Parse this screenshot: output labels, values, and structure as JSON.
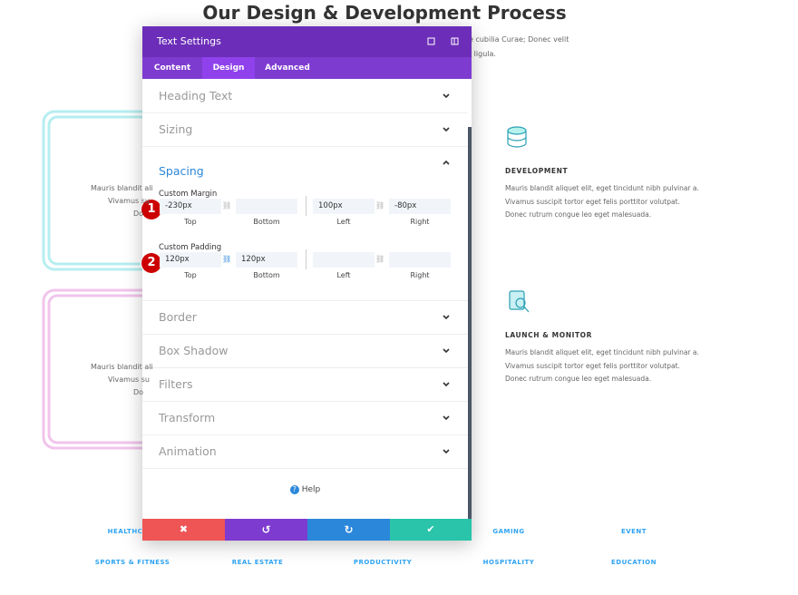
{
  "page": {
    "title": "Our Design & Development Process",
    "intro_lines": [
      "e cubilia Curae; Donec velit",
      "t ligula."
    ],
    "left_cards": [
      {
        "lines": [
          "Mauris blandit ali",
          "Vivamus su",
          "Do"
        ]
      },
      {
        "lines": [
          "Mauris blandit ali",
          "Vivamus su",
          "Do"
        ]
      }
    ],
    "features": [
      {
        "title": "DEVELOPMENT",
        "lines": [
          "Mauris blandit aliquet elit, eget tincidunt nibh pulvinar a.",
          "Vivamus suscipit tortor eget felis porttitor volutpat.",
          "Donec rutrum congue leo eget malesuada."
        ]
      },
      {
        "title": "LAUNCH & MONITOR",
        "lines": [
          "Mauris blandit aliquet elit, eget tincidunt nibh pulvinar a.",
          "Vivamus suscipit tortor eget felis porttitor volutpat.",
          "Donec rutrum congue leo eget malesuada."
        ]
      }
    ],
    "categories_row1": [
      "HEALTHC",
      "GAMING",
      "EVENT"
    ],
    "categories_row2": [
      "SPORTS & FITNESS",
      "REAL ESTATE",
      "PRODUCTIVITY",
      "HOSPITALITY",
      "EDUCATION"
    ]
  },
  "modal": {
    "title": "Text Settings",
    "tabs": [
      "Content",
      "Design",
      "Advanced"
    ],
    "active_tab": "Design",
    "sections_before": [
      "Heading Text",
      "Sizing"
    ],
    "open_section": "Spacing",
    "groups": [
      {
        "label": "Custom Margin",
        "badge": "1",
        "fields": [
          {
            "label": "Top",
            "value": "-230px"
          },
          {
            "label": "Bottom"
          },
          {
            "label": "Left",
            "value": "100px"
          },
          {
            "label": "Right",
            "value": "-80px"
          }
        ]
      },
      {
        "label": "Custom Padding",
        "badge": "2",
        "fields": [
          {
            "label": "Top",
            "value": "120px"
          },
          {
            "label": "Bottom",
            "value": "120px"
          },
          {
            "label": "Left"
          },
          {
            "label": "Right"
          }
        ]
      }
    ],
    "sections_after": [
      "Border",
      "Box Shadow",
      "Filters",
      "Transform",
      "Animation"
    ],
    "help": "Help"
  }
}
